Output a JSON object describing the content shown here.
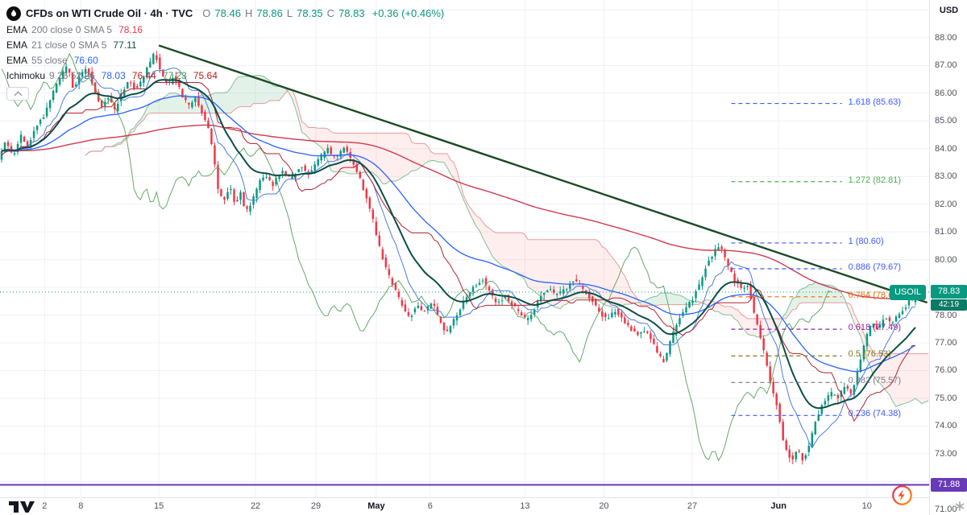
{
  "header": {
    "symbol_title": "CFDs on WTI Crude Oil · 4h · TVC",
    "ohlc": [
      {
        "k": "O",
        "v": "78.46"
      },
      {
        "k": "H",
        "v": "78.86"
      },
      {
        "k": "L",
        "v": "78.35"
      },
      {
        "k": "C",
        "v": "78.83"
      }
    ],
    "change": "+0.36 (+0.46%)",
    "currency": "USD"
  },
  "legend": {
    "indicators": [
      {
        "name": "EMA",
        "params": "200 close 0 SMA 5",
        "values": [
          {
            "v": "78.16",
            "color": "#e03e4e"
          }
        ]
      },
      {
        "name": "EMA",
        "params": "21 close 0 SMA 5",
        "values": [
          {
            "v": "77.11",
            "color": "#0a4f46"
          }
        ]
      },
      {
        "name": "EMA",
        "params": "55 close",
        "values": [
          {
            "v": "76.60",
            "color": "#2962ff"
          }
        ]
      },
      {
        "name": "Ichimoku",
        "params": "9 26 52 26",
        "values": [
          {
            "v": "78.03",
            "color": "#2962ff"
          },
          {
            "v": "76.44",
            "color": "#b71c1c"
          },
          {
            "v": "77.23",
            "color": "#43a047"
          },
          {
            "v": "75.64",
            "color": "#b71c1c"
          }
        ]
      }
    ]
  },
  "chart_data": {
    "type": "candlestick",
    "symbol": "USOIL",
    "description": "CFDs on WTI Crude Oil, 4-hour bars, TVC",
    "last_price": 78.83,
    "countdown": "42:19",
    "change_abs": 0.36,
    "change_pct": 0.46,
    "price_axis": {
      "min": 71.43,
      "max": 89.36,
      "tick_step": 1,
      "visible_ticks_from": 71,
      "visible_ticks_to": 88,
      "hidden_ticks": [
        72,
        79
      ]
    },
    "time_labels": [
      {
        "f": 0.048,
        "label": "2"
      },
      {
        "f": 0.087,
        "label": "8"
      },
      {
        "f": 0.171,
        "label": "15"
      },
      {
        "f": 0.275,
        "label": "22"
      },
      {
        "f": 0.34,
        "label": "29"
      },
      {
        "f": 0.405,
        "label": "May",
        "major": true
      },
      {
        "f": 0.463,
        "label": "6"
      },
      {
        "f": 0.565,
        "label": "13"
      },
      {
        "f": 0.65,
        "label": "20"
      },
      {
        "f": 0.745,
        "label": "27"
      },
      {
        "f": 0.838,
        "label": "Jun",
        "major": true
      },
      {
        "f": 0.933,
        "label": "10"
      }
    ],
    "n_bars": 284,
    "bars_width_fraction": 0.987,
    "seed": 11,
    "noise": 0.14,
    "last_candle": {
      "o": 78.46,
      "h": 78.86,
      "l": 78.35,
      "c": 78.83
    },
    "price_path": [
      [
        0.0,
        83.6
      ],
      [
        0.008,
        84.3
      ],
      [
        0.016,
        83.7
      ],
      [
        0.024,
        84.5
      ],
      [
        0.032,
        84.0
      ],
      [
        0.04,
        84.8
      ],
      [
        0.05,
        85.2
      ],
      [
        0.058,
        85.9
      ],
      [
        0.068,
        86.6
      ],
      [
        0.076,
        87.0
      ],
      [
        0.082,
        86.1
      ],
      [
        0.09,
        86.7
      ],
      [
        0.097,
        86.9
      ],
      [
        0.105,
        86.1
      ],
      [
        0.112,
        85.5
      ],
      [
        0.12,
        85.9
      ],
      [
        0.127,
        85.4
      ],
      [
        0.135,
        86.0
      ],
      [
        0.143,
        86.5
      ],
      [
        0.15,
        86.1
      ],
      [
        0.158,
        86.6
      ],
      [
        0.166,
        87.1
      ],
      [
        0.171,
        87.5
      ],
      [
        0.178,
        86.7
      ],
      [
        0.185,
        86.3
      ],
      [
        0.192,
        86.6
      ],
      [
        0.2,
        86.0
      ],
      [
        0.208,
        85.5
      ],
      [
        0.215,
        85.9
      ],
      [
        0.222,
        85.3
      ],
      [
        0.229,
        84.9
      ],
      [
        0.235,
        83.8
      ],
      [
        0.241,
        82.4
      ],
      [
        0.247,
        82.1
      ],
      [
        0.253,
        82.7
      ],
      [
        0.259,
        82.0
      ],
      [
        0.265,
        82.4
      ],
      [
        0.271,
        81.7
      ],
      [
        0.278,
        82.1
      ],
      [
        0.285,
        82.8
      ],
      [
        0.292,
        83.1
      ],
      [
        0.3,
        82.7
      ],
      [
        0.31,
        83.2
      ],
      [
        0.32,
        82.9
      ],
      [
        0.33,
        83.4
      ],
      [
        0.34,
        83.1
      ],
      [
        0.35,
        83.6
      ],
      [
        0.36,
        84.0
      ],
      [
        0.369,
        83.6
      ],
      [
        0.378,
        84.1
      ],
      [
        0.386,
        83.6
      ],
      [
        0.394,
        83.1
      ],
      [
        0.402,
        82.3
      ],
      [
        0.41,
        81.4
      ],
      [
        0.418,
        80.3
      ],
      [
        0.426,
        79.5
      ],
      [
        0.434,
        78.9
      ],
      [
        0.442,
        78.3
      ],
      [
        0.45,
        77.9
      ],
      [
        0.458,
        78.4
      ],
      [
        0.466,
        78.1
      ],
      [
        0.474,
        78.5
      ],
      [
        0.482,
        77.9
      ],
      [
        0.49,
        77.3
      ],
      [
        0.498,
        77.8
      ],
      [
        0.506,
        78.3
      ],
      [
        0.514,
        78.8
      ],
      [
        0.522,
        79.1
      ],
      [
        0.53,
        79.3
      ],
      [
        0.538,
        78.8
      ],
      [
        0.546,
        78.4
      ],
      [
        0.554,
        78.7
      ],
      [
        0.562,
        78.4
      ],
      [
        0.57,
        78.1
      ],
      [
        0.578,
        77.8
      ],
      [
        0.586,
        78.2
      ],
      [
        0.594,
        78.7
      ],
      [
        0.602,
        79.0
      ],
      [
        0.61,
        78.7
      ],
      [
        0.62,
        78.9
      ],
      [
        0.63,
        79.3
      ],
      [
        0.64,
        78.9
      ],
      [
        0.65,
        78.5
      ],
      [
        0.658,
        78.1
      ],
      [
        0.666,
        77.8
      ],
      [
        0.674,
        78.2
      ],
      [
        0.682,
        77.9
      ],
      [
        0.69,
        77.6
      ],
      [
        0.698,
        77.3
      ],
      [
        0.706,
        77.5
      ],
      [
        0.714,
        77.1
      ],
      [
        0.722,
        76.6
      ],
      [
        0.728,
        76.3
      ],
      [
        0.736,
        77.1
      ],
      [
        0.744,
        77.9
      ],
      [
        0.752,
        78.2
      ],
      [
        0.76,
        78.6
      ],
      [
        0.768,
        79.2
      ],
      [
        0.776,
        79.9
      ],
      [
        0.784,
        80.3
      ],
      [
        0.79,
        80.45
      ],
      [
        0.798,
        79.8
      ],
      [
        0.806,
        79.2
      ],
      [
        0.814,
        78.9
      ],
      [
        0.82,
        79.1
      ],
      [
        0.828,
        77.9
      ],
      [
        0.836,
        76.9
      ],
      [
        0.844,
        75.7
      ],
      [
        0.852,
        74.7
      ],
      [
        0.86,
        73.3
      ],
      [
        0.868,
        72.7
      ],
      [
        0.874,
        73.2
      ],
      [
        0.88,
        72.75
      ],
      [
        0.887,
        73.3
      ],
      [
        0.894,
        74.2
      ],
      [
        0.902,
        74.8
      ],
      [
        0.91,
        75.2
      ],
      [
        0.918,
        75.0
      ],
      [
        0.926,
        75.4
      ],
      [
        0.934,
        75.1
      ],
      [
        0.942,
        76.2
      ],
      [
        0.949,
        77.2
      ],
      [
        0.956,
        77.7
      ],
      [
        0.963,
        77.5
      ],
      [
        0.97,
        77.9
      ],
      [
        0.977,
        77.7
      ],
      [
        0.984,
        78.0
      ],
      [
        0.991,
        78.2
      ],
      [
        1.0,
        78.8
      ]
    ],
    "indicator_series": {
      "emas": [
        {
          "period": 200,
          "color": "#d03a4f",
          "width": 1.4
        },
        {
          "period": 55,
          "color": "#2962ff",
          "width": 1.3
        },
        {
          "period": 21,
          "color": "#0a4f46",
          "width": 2
        }
      ],
      "ichimoku": {
        "tenkan": 9,
        "kijun": 26,
        "senkou": 52,
        "displacement": 26,
        "tenkan_color": "#4a7de0",
        "kijun_color": "#b0232f",
        "chikou_color": "#55a05a",
        "span_a_color": "#74bb8d",
        "span_b_color": "#e89090",
        "cloud_up": "rgba(83,175,116,0.16)",
        "cloud_down": "rgba(242,84,91,0.10)"
      }
    },
    "drawings": {
      "trendline": {
        "x1": 0.171,
        "price1": 87.72,
        "x2": 0.998,
        "price2": 78.45,
        "color": "#1d4b24",
        "width": 2.4
      },
      "horizontal_line": {
        "price": 71.88,
        "color": "#673ab7",
        "width": 2
      },
      "fib_retracement": {
        "dash_x1": 0.787,
        "dash_x2": 0.906,
        "levels": [
          {
            "level": "1.618",
            "price": 85.63,
            "color": "#3d5afe"
          },
          {
            "level": "1.272",
            "price": 82.81,
            "color": "#4caf50"
          },
          {
            "level": "1",
            "price": 80.6,
            "color": "#3d5afe"
          },
          {
            "level": "0.886",
            "price": 79.67,
            "color": "#3d5afe"
          },
          {
            "level": "0.764",
            "price": 78.66,
            "color": "#ef6c00"
          },
          {
            "level": "0.618",
            "price": 77.49,
            "color": "#8e24aa"
          },
          {
            "level": "0.5",
            "price": 76.53,
            "color": "#827717"
          },
          {
            "level": "0.382",
            "price": 75.57,
            "color": "#787b86"
          },
          {
            "level": "0.236",
            "price": 74.38,
            "color": "#3d5afe"
          }
        ]
      }
    },
    "colors": {
      "up": "#089981",
      "down": "#f23645",
      "grid": "#eef1f8",
      "price_line": "#089981"
    }
  }
}
